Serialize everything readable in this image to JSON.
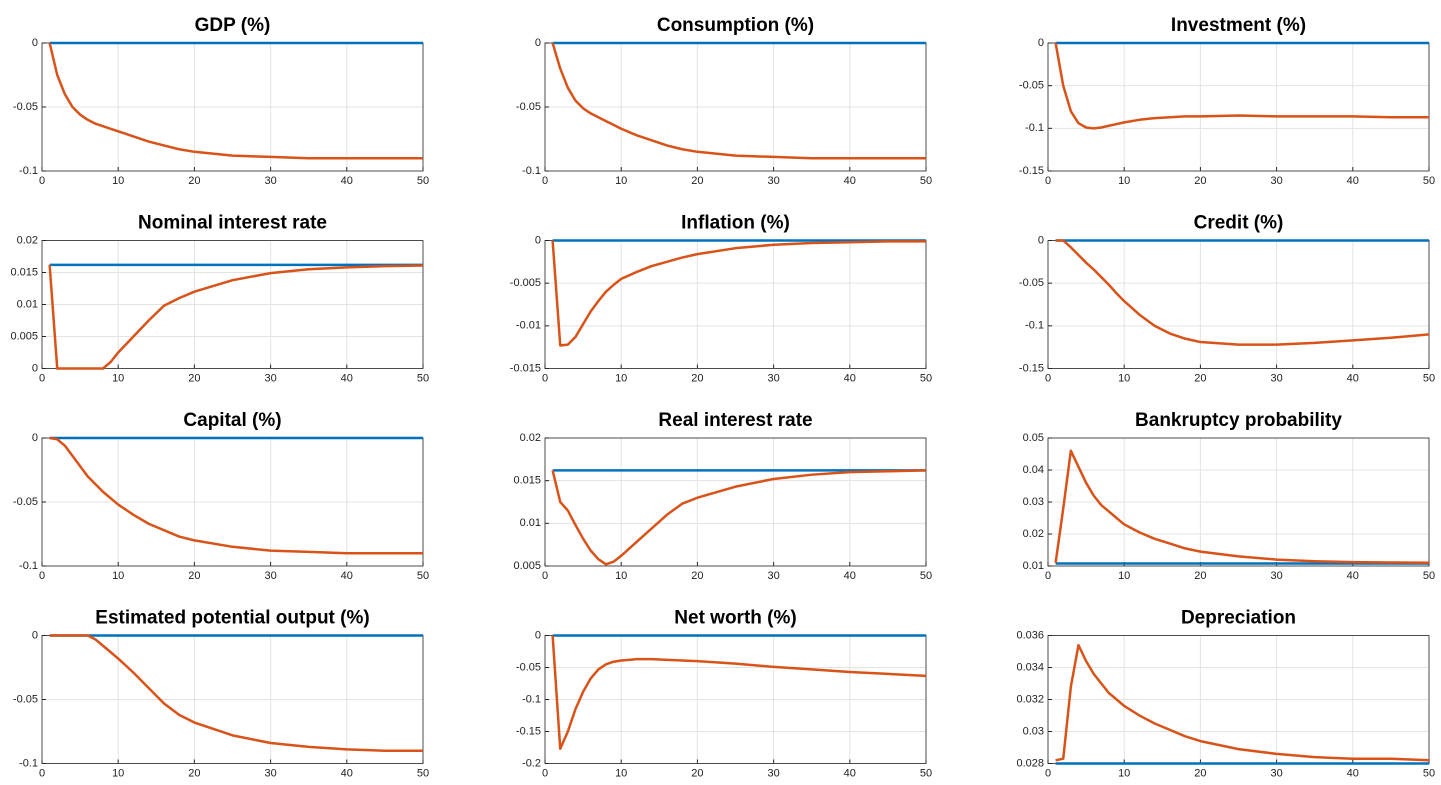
{
  "chart_data": [
    {
      "type": "line",
      "title": "GDP (%)",
      "x": [
        1,
        2,
        3,
        4,
        5,
        6,
        7,
        8,
        9,
        10,
        12,
        14,
        16,
        18,
        20,
        25,
        30,
        35,
        40,
        45,
        50
      ],
      "xlim": [
        0,
        50
      ],
      "xticks": [
        0,
        10,
        20,
        30,
        40,
        50
      ],
      "ylim": [
        -0.1,
        0
      ],
      "yticks": [
        -0.1,
        -0.05,
        0
      ],
      "grid": true,
      "series": [
        {
          "color": "#0072bd",
          "values": [
            0,
            0,
            0,
            0,
            0,
            0,
            0,
            0,
            0,
            0,
            0,
            0,
            0,
            0,
            0,
            0,
            0,
            0,
            0,
            0,
            0
          ]
        },
        {
          "color": "#d95319",
          "values": [
            0,
            -0.025,
            -0.04,
            -0.05,
            -0.056,
            -0.06,
            -0.063,
            -0.065,
            -0.067,
            -0.069,
            -0.073,
            -0.077,
            -0.08,
            -0.083,
            -0.085,
            -0.088,
            -0.089,
            -0.09,
            -0.09,
            -0.09,
            -0.09
          ]
        }
      ]
    },
    {
      "type": "line",
      "title": "Consumption (%)",
      "x": [
        1,
        2,
        3,
        4,
        5,
        6,
        7,
        8,
        9,
        10,
        12,
        14,
        16,
        18,
        20,
        25,
        30,
        35,
        40,
        45,
        50
      ],
      "xlim": [
        0,
        50
      ],
      "xticks": [
        0,
        10,
        20,
        30,
        40,
        50
      ],
      "ylim": [
        -0.1,
        0
      ],
      "yticks": [
        -0.1,
        -0.05,
        0
      ],
      "grid": true,
      "series": [
        {
          "color": "#0072bd",
          "values": [
            0,
            0,
            0,
            0,
            0,
            0,
            0,
            0,
            0,
            0,
            0,
            0,
            0,
            0,
            0,
            0,
            0,
            0,
            0,
            0,
            0
          ]
        },
        {
          "color": "#d95319",
          "values": [
            0,
            -0.02,
            -0.035,
            -0.045,
            -0.051,
            -0.055,
            -0.058,
            -0.061,
            -0.064,
            -0.067,
            -0.072,
            -0.076,
            -0.08,
            -0.083,
            -0.085,
            -0.088,
            -0.089,
            -0.09,
            -0.09,
            -0.09,
            -0.09
          ]
        }
      ]
    },
    {
      "type": "line",
      "title": "Investment (%)",
      "x": [
        1,
        2,
        3,
        4,
        5,
        6,
        7,
        8,
        9,
        10,
        12,
        14,
        16,
        18,
        20,
        25,
        30,
        35,
        40,
        45,
        50
      ],
      "xlim": [
        0,
        50
      ],
      "xticks": [
        0,
        10,
        20,
        30,
        40,
        50
      ],
      "ylim": [
        -0.15,
        0
      ],
      "yticks": [
        -0.15,
        -0.1,
        -0.05,
        0
      ],
      "grid": true,
      "series": [
        {
          "color": "#0072bd",
          "values": [
            0,
            0,
            0,
            0,
            0,
            0,
            0,
            0,
            0,
            0,
            0,
            0,
            0,
            0,
            0,
            0,
            0,
            0,
            0,
            0,
            0
          ]
        },
        {
          "color": "#d95319",
          "values": [
            0,
            -0.05,
            -0.08,
            -0.094,
            -0.099,
            -0.1,
            -0.099,
            -0.097,
            -0.095,
            -0.093,
            -0.09,
            -0.088,
            -0.087,
            -0.086,
            -0.086,
            -0.085,
            -0.086,
            -0.086,
            -0.086,
            -0.087,
            -0.087
          ]
        }
      ]
    },
    {
      "type": "line",
      "title": "Nominal interest rate",
      "x": [
        1,
        2,
        3,
        4,
        5,
        6,
        7,
        8,
        9,
        10,
        12,
        14,
        16,
        18,
        20,
        25,
        30,
        35,
        40,
        45,
        50
      ],
      "xlim": [
        0,
        50
      ],
      "xticks": [
        0,
        10,
        20,
        30,
        40,
        50
      ],
      "ylim": [
        0,
        0.02
      ],
      "yticks": [
        0,
        0.005,
        0.01,
        0.015,
        0.02
      ],
      "grid": true,
      "series": [
        {
          "color": "#0072bd",
          "values": [
            0.0162,
            0.0162,
            0.0162,
            0.0162,
            0.0162,
            0.0162,
            0.0162,
            0.0162,
            0.0162,
            0.0162,
            0.0162,
            0.0162,
            0.0162,
            0.0162,
            0.0162,
            0.0162,
            0.0162,
            0.0162,
            0.0162,
            0.0162,
            0.0162
          ]
        },
        {
          "color": "#d95319",
          "values": [
            0.0162,
            0,
            0,
            0,
            0,
            0,
            0,
            0,
            0.001,
            0.0025,
            0.005,
            0.0075,
            0.0098,
            0.011,
            0.012,
            0.0138,
            0.0149,
            0.0155,
            0.0158,
            0.016,
            0.0161
          ]
        }
      ]
    },
    {
      "type": "line",
      "title": "Inflation (%)",
      "x": [
        1,
        2,
        3,
        4,
        5,
        6,
        7,
        8,
        9,
        10,
        12,
        14,
        16,
        18,
        20,
        25,
        30,
        35,
        40,
        45,
        50
      ],
      "xlim": [
        0,
        50
      ],
      "xticks": [
        0,
        10,
        20,
        30,
        40,
        50
      ],
      "ylim": [
        -0.015,
        0
      ],
      "yticks": [
        -0.015,
        -0.01,
        -0.005,
        0
      ],
      "grid": true,
      "series": [
        {
          "color": "#0072bd",
          "values": [
            0,
            0,
            0,
            0,
            0,
            0,
            0,
            0,
            0,
            0,
            0,
            0,
            0,
            0,
            0,
            0,
            0,
            0,
            0,
            0,
            0
          ]
        },
        {
          "color": "#d95319",
          "values": [
            0,
            -0.0123,
            -0.0122,
            -0.0113,
            -0.0098,
            -0.0083,
            -0.0071,
            -0.006,
            -0.0052,
            -0.0045,
            -0.0037,
            -0.003,
            -0.0025,
            -0.002,
            -0.0016,
            -0.0009,
            -0.0005,
            -0.0003,
            -0.0002,
            -0.0001,
            -0.0001
          ]
        }
      ]
    },
    {
      "type": "line",
      "title": "Credit (%)",
      "x": [
        1,
        2,
        3,
        4,
        5,
        6,
        7,
        8,
        9,
        10,
        12,
        14,
        16,
        18,
        20,
        25,
        30,
        35,
        40,
        45,
        50
      ],
      "xlim": [
        0,
        50
      ],
      "xticks": [
        0,
        10,
        20,
        30,
        40,
        50
      ],
      "ylim": [
        -0.15,
        0
      ],
      "yticks": [
        -0.15,
        -0.1,
        -0.05,
        0
      ],
      "grid": true,
      "series": [
        {
          "color": "#0072bd",
          "values": [
            0,
            0,
            0,
            0,
            0,
            0,
            0,
            0,
            0,
            0,
            0,
            0,
            0,
            0,
            0,
            0,
            0,
            0,
            0,
            0,
            0
          ]
        },
        {
          "color": "#d95319",
          "values": [
            0,
            0,
            -0.008,
            -0.017,
            -0.026,
            -0.034,
            -0.043,
            -0.052,
            -0.062,
            -0.071,
            -0.087,
            -0.1,
            -0.109,
            -0.115,
            -0.119,
            -0.122,
            -0.122,
            -0.12,
            -0.117,
            -0.114,
            -0.11
          ]
        }
      ]
    },
    {
      "type": "line",
      "title": "Capital (%)",
      "x": [
        1,
        2,
        3,
        4,
        5,
        6,
        7,
        8,
        9,
        10,
        12,
        14,
        16,
        18,
        20,
        25,
        30,
        35,
        40,
        45,
        50
      ],
      "xlim": [
        0,
        50
      ],
      "xticks": [
        0,
        10,
        20,
        30,
        40,
        50
      ],
      "ylim": [
        -0.1,
        0
      ],
      "yticks": [
        -0.1,
        -0.05,
        0
      ],
      "grid": true,
      "series": [
        {
          "color": "#0072bd",
          "values": [
            0,
            0,
            0,
            0,
            0,
            0,
            0,
            0,
            0,
            0,
            0,
            0,
            0,
            0,
            0,
            0,
            0,
            0,
            0,
            0,
            0
          ]
        },
        {
          "color": "#d95319",
          "values": [
            0,
            -0.001,
            -0.006,
            -0.014,
            -0.022,
            -0.03,
            -0.036,
            -0.042,
            -0.047,
            -0.052,
            -0.06,
            -0.067,
            -0.072,
            -0.077,
            -0.08,
            -0.085,
            -0.088,
            -0.089,
            -0.09,
            -0.09,
            -0.09
          ]
        }
      ]
    },
    {
      "type": "line",
      "title": "Real interest rate",
      "x": [
        1,
        2,
        3,
        4,
        5,
        6,
        7,
        8,
        9,
        10,
        12,
        14,
        16,
        18,
        20,
        25,
        30,
        35,
        40,
        45,
        50
      ],
      "xlim": [
        0,
        50
      ],
      "xticks": [
        0,
        10,
        20,
        30,
        40,
        50
      ],
      "ylim": [
        0.005,
        0.02
      ],
      "yticks": [
        0.005,
        0.01,
        0.015,
        0.02
      ],
      "grid": true,
      "series": [
        {
          "color": "#0072bd",
          "values": [
            0.0162,
            0.0162,
            0.0162,
            0.0162,
            0.0162,
            0.0162,
            0.0162,
            0.0162,
            0.0162,
            0.0162,
            0.0162,
            0.0162,
            0.0162,
            0.0162,
            0.0162,
            0.0162,
            0.0162,
            0.0162,
            0.0162,
            0.0162,
            0.0162
          ]
        },
        {
          "color": "#d95319",
          "values": [
            0.0162,
            0.0125,
            0.0115,
            0.0098,
            0.0082,
            0.0068,
            0.0058,
            0.0052,
            0.0055,
            0.0062,
            0.0078,
            0.0094,
            0.011,
            0.0123,
            0.013,
            0.0143,
            0.0152,
            0.0157,
            0.016,
            0.0161,
            0.0162
          ]
        }
      ]
    },
    {
      "type": "line",
      "title": "Bankruptcy probability",
      "x": [
        1,
        2,
        3,
        4,
        5,
        6,
        7,
        8,
        9,
        10,
        12,
        14,
        16,
        18,
        20,
        25,
        30,
        35,
        40,
        45,
        50
      ],
      "xlim": [
        0,
        50
      ],
      "xticks": [
        0,
        10,
        20,
        30,
        40,
        50
      ],
      "ylim": [
        0.01,
        0.05
      ],
      "yticks": [
        0.01,
        0.02,
        0.03,
        0.04,
        0.05
      ],
      "grid": true,
      "series": [
        {
          "color": "#0072bd",
          "values": [
            0.0108,
            0.0108,
            0.0108,
            0.0108,
            0.0108,
            0.0108,
            0.0108,
            0.0108,
            0.0108,
            0.0108,
            0.0108,
            0.0108,
            0.0108,
            0.0108,
            0.0108,
            0.0108,
            0.0108,
            0.0108,
            0.0108,
            0.0108,
            0.0108
          ]
        },
        {
          "color": "#d95319",
          "values": [
            0.011,
            0.028,
            0.046,
            0.041,
            0.036,
            0.032,
            0.029,
            0.027,
            0.025,
            0.023,
            0.0205,
            0.0185,
            0.017,
            0.0155,
            0.0145,
            0.013,
            0.012,
            0.0115,
            0.0112,
            0.0111,
            0.011
          ]
        }
      ]
    },
    {
      "type": "line",
      "title": "Estimated potential output (%)",
      "x": [
        1,
        2,
        3,
        4,
        5,
        6,
        7,
        8,
        9,
        10,
        12,
        14,
        16,
        18,
        20,
        25,
        30,
        35,
        40,
        45,
        50
      ],
      "xlim": [
        0,
        50
      ],
      "xticks": [
        0,
        10,
        20,
        30,
        40,
        50
      ],
      "ylim": [
        -0.1,
        0
      ],
      "yticks": [
        -0.1,
        -0.05,
        0
      ],
      "grid": true,
      "series": [
        {
          "color": "#0072bd",
          "values": [
            0,
            0,
            0,
            0,
            0,
            0,
            0,
            0,
            0,
            0,
            0,
            0,
            0,
            0,
            0,
            0,
            0,
            0,
            0,
            0,
            0
          ]
        },
        {
          "color": "#d95319",
          "values": [
            0,
            0,
            0,
            0,
            0,
            0,
            -0.003,
            -0.008,
            -0.013,
            -0.018,
            -0.029,
            -0.041,
            -0.053,
            -0.062,
            -0.068,
            -0.078,
            -0.084,
            -0.087,
            -0.089,
            -0.09,
            -0.09
          ]
        }
      ]
    },
    {
      "type": "line",
      "title": "Net worth (%)",
      "x": [
        1,
        2,
        3,
        4,
        5,
        6,
        7,
        8,
        9,
        10,
        12,
        14,
        16,
        18,
        20,
        25,
        30,
        35,
        40,
        45,
        50
      ],
      "xlim": [
        0,
        50
      ],
      "xticks": [
        0,
        10,
        20,
        30,
        40,
        50
      ],
      "ylim": [
        -0.2,
        0
      ],
      "yticks": [
        -0.2,
        -0.15,
        -0.1,
        -0.05,
        0
      ],
      "grid": true,
      "series": [
        {
          "color": "#0072bd",
          "values": [
            0,
            0,
            0,
            0,
            0,
            0,
            0,
            0,
            0,
            0,
            0,
            0,
            0,
            0,
            0,
            0,
            0,
            0,
            0,
            0,
            0
          ]
        },
        {
          "color": "#d95319",
          "values": [
            0,
            -0.177,
            -0.15,
            -0.115,
            -0.088,
            -0.067,
            -0.053,
            -0.045,
            -0.041,
            -0.039,
            -0.037,
            -0.037,
            -0.038,
            -0.039,
            -0.04,
            -0.044,
            -0.049,
            -0.053,
            -0.057,
            -0.06,
            -0.063
          ]
        }
      ]
    },
    {
      "type": "line",
      "title": "Depreciation",
      "x": [
        1,
        2,
        3,
        4,
        5,
        6,
        7,
        8,
        9,
        10,
        12,
        14,
        16,
        18,
        20,
        25,
        30,
        35,
        40,
        45,
        50
      ],
      "xlim": [
        0,
        50
      ],
      "xticks": [
        0,
        10,
        20,
        30,
        40,
        50
      ],
      "ylim": [
        0.028,
        0.036
      ],
      "yticks": [
        0.028,
        0.03,
        0.032,
        0.034,
        0.036
      ],
      "grid": true,
      "series": [
        {
          "color": "#0072bd",
          "values": [
            0.028,
            0.028,
            0.028,
            0.028,
            0.028,
            0.028,
            0.028,
            0.028,
            0.028,
            0.028,
            0.028,
            0.028,
            0.028,
            0.028,
            0.028,
            0.028,
            0.028,
            0.028,
            0.028,
            0.028,
            0.028
          ]
        },
        {
          "color": "#d95319",
          "values": [
            0.0282,
            0.0283,
            0.0328,
            0.0354,
            0.0344,
            0.0336,
            0.033,
            0.0324,
            0.032,
            0.0316,
            0.031,
            0.0305,
            0.0301,
            0.0297,
            0.0294,
            0.0289,
            0.0286,
            0.0284,
            0.0283,
            0.0283,
            0.0282
          ]
        }
      ]
    }
  ]
}
